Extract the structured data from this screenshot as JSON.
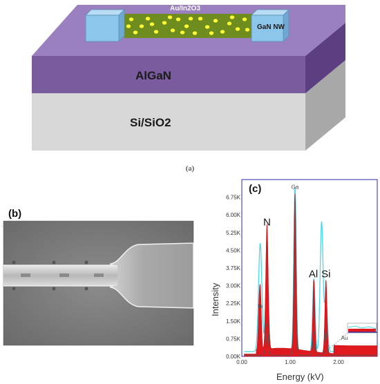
{
  "panel_a": {
    "layer_top_label": "AlGaN",
    "layer_bottom_label": "Si/SiO2",
    "nanowire_label": "Au/In2O3",
    "contact_label": "GaN NW",
    "caption": "(a)",
    "colors": {
      "algan": "#7a5b9e",
      "algan_top": "#9b80bf",
      "algan_side": "#5c3f80",
      "substrate": "#d8d8d8",
      "substrate_side": "#a8a8a8",
      "nanowire": "#6f8d1e",
      "dots": "#ffff33",
      "contact": "#8ec5ea"
    }
  },
  "panel_b": {
    "label": "(b)",
    "image": "SEM micrograph of GaN nanowire with contact pad"
  },
  "panel_c": {
    "label": "(c)",
    "chart_data": {
      "type": "line",
      "title": "",
      "xlabel": "Energy (kV)",
      "ylabel": "Intensity",
      "xlim": [
        0,
        2.8
      ],
      "ylim": [
        0,
        7.5
      ],
      "x_ticks": [
        "0.00",
        "1.00",
        "2.00"
      ],
      "y_ticks": [
        "0.00K",
        "0.75K",
        "1.50K",
        "2.25K",
        "3.00K",
        "3.75K",
        "4.50K",
        "5.25K",
        "6.00K",
        "6.75K"
      ],
      "peak_labels": [
        {
          "text": "Ga",
          "x": 1.1,
          "y": 7.1
        },
        {
          "text": "N",
          "x": 0.52,
          "y": 5.55
        },
        {
          "text": "Al",
          "x": 1.48,
          "y": 3.35
        },
        {
          "text": "Si",
          "x": 1.74,
          "y": 3.35
        },
        {
          "text": "In",
          "x": 0.38,
          "y": 2.05
        },
        {
          "text": "Au",
          "x": 2.12,
          "y": 0.7
        }
      ],
      "series": [
        {
          "values_ref": "red_fill",
          "color": "#e0191f"
        },
        {
          "values_ref": "cyan_line",
          "color": "#4fd6e6"
        },
        {
          "values_ref": "dark_line",
          "color": "#555555"
        }
      ]
    }
  }
}
